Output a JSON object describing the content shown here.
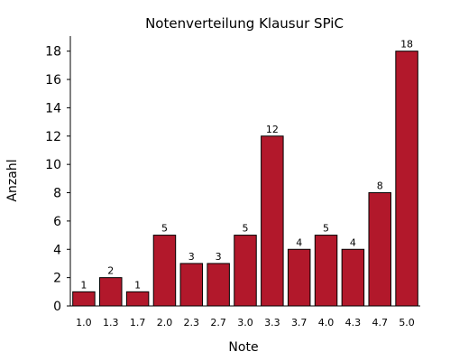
{
  "chart_data": {
    "type": "bar",
    "title": "Notenverteilung Klausur SPiC",
    "xlabel": "Note",
    "ylabel": "Anzahl",
    "categories": [
      "1.0",
      "1.3",
      "1.7",
      "2.0",
      "2.3",
      "2.7",
      "3.0",
      "3.3",
      "3.7",
      "4.0",
      "4.3",
      "4.7",
      "5.0"
    ],
    "values": [
      1,
      2,
      1,
      5,
      3,
      3,
      5,
      12,
      4,
      5,
      4,
      8,
      18
    ],
    "ylim": [
      0,
      19
    ],
    "yticks": [
      "0",
      "2",
      "4",
      "6",
      "8",
      "10",
      "12",
      "14",
      "16",
      "18"
    ],
    "grid": false,
    "legend": "none",
    "bar_color": "#b2182b",
    "data_labels": [
      "1",
      "2",
      "1",
      "5",
      "3",
      "3",
      "5",
      "12",
      "4",
      "5",
      "4",
      "8",
      "18"
    ]
  }
}
